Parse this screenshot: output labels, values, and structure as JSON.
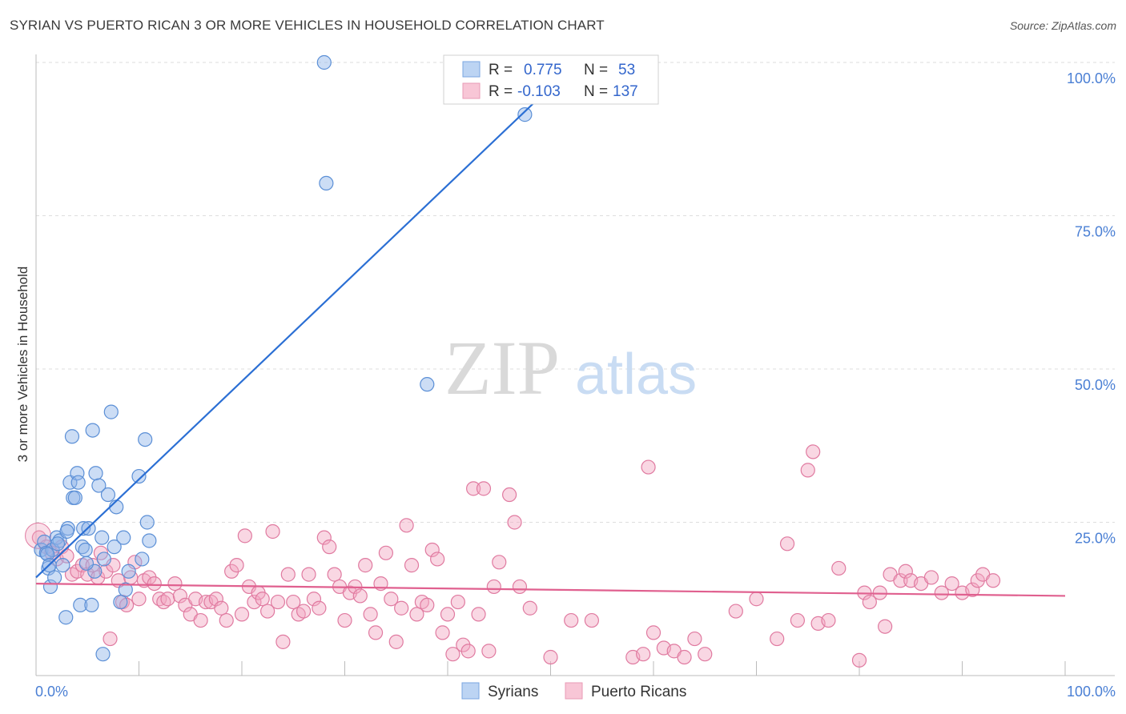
{
  "title": "SYRIAN VS PUERTO RICAN 3 OR MORE VEHICLES IN HOUSEHOLD CORRELATION CHART",
  "source": "Source: ZipAtlas.com",
  "watermark": {
    "zip": "ZIP",
    "atlas": "atlas"
  },
  "chart_data": {
    "type": "scatter",
    "xlabel": "",
    "ylabel": "3 or more Vehicles in Household",
    "xlim": [
      0,
      100
    ],
    "ylim": [
      0,
      100
    ],
    "x_tick_labels": [
      "0.0%",
      "100.0%"
    ],
    "y_ticks": [
      25,
      50,
      75,
      100
    ],
    "y_tick_labels": [
      "25.0%",
      "50.0%",
      "75.0%",
      "100.0%"
    ],
    "grid": true,
    "legend_top": [
      {
        "r_label": "R =",
        "r_value": "0.775",
        "n_label": "N =",
        "n_value": "53",
        "color": "#8db4e8"
      },
      {
        "r_label": "R =",
        "r_value": "-0.103",
        "n_label": "N =",
        "n_value": "137",
        "color": "#f2a7c0"
      }
    ],
    "series": [
      {
        "name": "Syrians",
        "color": "#8db4e8",
        "stroke": "#5b8fd6",
        "trend_color": "#2b6fd4",
        "trend": {
          "x0": 0,
          "y0": 16,
          "x1": 50,
          "y1": 96
        },
        "points": [
          [
            0.5,
            20.5
          ],
          [
            0.8,
            21.8
          ],
          [
            1,
            20
          ],
          [
            1.2,
            17.5
          ],
          [
            1.4,
            14.5
          ],
          [
            1.6,
            20.5
          ],
          [
            1.8,
            16
          ],
          [
            2,
            22.5
          ],
          [
            2.3,
            22
          ],
          [
            2.6,
            18
          ],
          [
            2.9,
            9.5
          ],
          [
            3.1,
            24
          ],
          [
            3.3,
            31.5
          ],
          [
            3.5,
            39
          ],
          [
            3.6,
            29
          ],
          [
            3.8,
            29
          ],
          [
            4,
            33
          ],
          [
            4.1,
            31.5
          ],
          [
            4.3,
            11.5
          ],
          [
            4.5,
            21
          ],
          [
            4.6,
            24
          ],
          [
            4.8,
            20.5
          ],
          [
            5.1,
            24
          ],
          [
            5.4,
            11.5
          ],
          [
            5.5,
            40
          ],
          [
            5.7,
            17
          ],
          [
            5.8,
            33
          ],
          [
            6.1,
            31
          ],
          [
            6.4,
            22.5
          ],
          [
            6.6,
            19
          ],
          [
            7,
            29.5
          ],
          [
            7.3,
            43
          ],
          [
            7.6,
            21
          ],
          [
            7.8,
            27.5
          ],
          [
            8.2,
            12
          ],
          [
            8.5,
            22.5
          ],
          [
            8.7,
            14
          ],
          [
            9,
            17
          ],
          [
            10,
            32.5
          ],
          [
            10.3,
            19
          ],
          [
            10.6,
            38.5
          ],
          [
            10.8,
            25
          ],
          [
            11,
            22
          ],
          [
            6.5,
            3.5
          ],
          [
            1.1,
            19.8
          ],
          [
            2.1,
            21.5
          ],
          [
            4.9,
            18.3
          ],
          [
            28,
            100
          ],
          [
            28.2,
            80.3
          ],
          [
            47.5,
            91.5
          ],
          [
            38,
            47.5
          ],
          [
            1.3,
            18
          ],
          [
            3,
            23.5
          ]
        ]
      },
      {
        "name": "Puerto Ricans",
        "color": "#f2a7c0",
        "stroke": "#e07aa0",
        "trend_color": "#e0608f",
        "trend": {
          "x0": 0,
          "y0": 15,
          "x1": 100,
          "y1": 13
        },
        "points": [
          [
            0.3,
            22.5
          ],
          [
            1,
            21
          ],
          [
            1.5,
            20
          ],
          [
            2,
            19
          ],
          [
            2.5,
            21
          ],
          [
            3,
            19.5
          ],
          [
            3.5,
            16.5
          ],
          [
            4,
            17
          ],
          [
            4.5,
            18
          ],
          [
            5,
            16.5
          ],
          [
            5.5,
            18
          ],
          [
            6,
            16
          ],
          [
            6.3,
            20
          ],
          [
            6.8,
            17
          ],
          [
            7.2,
            6
          ],
          [
            7.5,
            18
          ],
          [
            8,
            15.5
          ],
          [
            8.4,
            12
          ],
          [
            8.8,
            11.5
          ],
          [
            9.2,
            16
          ],
          [
            9.6,
            18.5
          ],
          [
            10,
            12.5
          ],
          [
            10.5,
            15.5
          ],
          [
            11,
            16
          ],
          [
            11.5,
            15
          ],
          [
            12,
            12.5
          ],
          [
            12.4,
            12
          ],
          [
            12.8,
            12.5
          ],
          [
            13.5,
            15
          ],
          [
            14,
            13
          ],
          [
            14.5,
            11.5
          ],
          [
            15,
            10
          ],
          [
            15.5,
            12.5
          ],
          [
            16,
            9
          ],
          [
            16.5,
            12
          ],
          [
            17,
            12
          ],
          [
            17.5,
            12.5
          ],
          [
            18,
            11
          ],
          [
            18.5,
            9
          ],
          [
            19,
            17
          ],
          [
            19.5,
            18
          ],
          [
            20,
            10
          ],
          [
            20.3,
            22.8
          ],
          [
            20.7,
            14.5
          ],
          [
            21.2,
            12
          ],
          [
            21.6,
            13.5
          ],
          [
            22,
            12.5
          ],
          [
            22.5,
            10.5
          ],
          [
            23,
            23.5
          ],
          [
            23.5,
            12
          ],
          [
            24,
            5.5
          ],
          [
            24.5,
            16.5
          ],
          [
            25,
            12
          ],
          [
            25.5,
            10
          ],
          [
            26,
            10.5
          ],
          [
            26.5,
            16.5
          ],
          [
            27,
            12.5
          ],
          [
            27.5,
            11
          ],
          [
            28,
            22.5
          ],
          [
            28.5,
            21
          ],
          [
            29,
            16.5
          ],
          [
            29.5,
            14.5
          ],
          [
            30,
            9
          ],
          [
            30.5,
            13.5
          ],
          [
            31,
            14.5
          ],
          [
            31.5,
            13
          ],
          [
            32,
            18
          ],
          [
            32.5,
            10
          ],
          [
            33,
            7
          ],
          [
            33.5,
            15
          ],
          [
            34,
            20
          ],
          [
            34.5,
            12.5
          ],
          [
            35,
            5.5
          ],
          [
            35.5,
            11
          ],
          [
            36,
            24.5
          ],
          [
            36.5,
            18
          ],
          [
            37,
            10
          ],
          [
            37.5,
            12
          ],
          [
            38,
            11.5
          ],
          [
            38.5,
            20.5
          ],
          [
            39,
            19
          ],
          [
            39.5,
            7
          ],
          [
            40,
            10
          ],
          [
            40.5,
            3.5
          ],
          [
            41,
            12
          ],
          [
            41.5,
            5
          ],
          [
            42,
            4
          ],
          [
            42.5,
            30.5
          ],
          [
            43,
            10
          ],
          [
            43.5,
            30.5
          ],
          [
            44,
            4
          ],
          [
            44.5,
            14.5
          ],
          [
            45,
            18.5
          ],
          [
            46,
            29.5
          ],
          [
            46.5,
            25
          ],
          [
            47,
            14.5
          ],
          [
            48,
            11
          ],
          [
            50,
            3
          ],
          [
            52,
            9
          ],
          [
            54,
            9
          ],
          [
            58,
            3
          ],
          [
            59,
            3.5
          ],
          [
            59.5,
            34
          ],
          [
            60,
            7
          ],
          [
            61,
            4.5
          ],
          [
            62,
            4
          ],
          [
            63,
            3
          ],
          [
            64,
            6
          ],
          [
            65,
            3.5
          ],
          [
            68,
            10.5
          ],
          [
            70,
            12.5
          ],
          [
            72,
            6
          ],
          [
            73,
            21.5
          ],
          [
            74,
            9
          ],
          [
            75,
            33.5
          ],
          [
            75.5,
            36.5
          ],
          [
            76,
            8.5
          ],
          [
            77,
            9
          ],
          [
            78,
            17.5
          ],
          [
            80,
            2.5
          ],
          [
            80.5,
            13.5
          ],
          [
            81,
            12
          ],
          [
            82,
            13.5
          ],
          [
            82.5,
            8
          ],
          [
            83,
            16.5
          ],
          [
            84,
            15.5
          ],
          [
            84.5,
            17
          ],
          [
            85,
            15.5
          ],
          [
            86,
            15
          ],
          [
            87,
            16
          ],
          [
            88,
            13.5
          ],
          [
            89,
            15
          ],
          [
            90,
            13.5
          ],
          [
            91,
            14
          ],
          [
            91.5,
            15.5
          ],
          [
            92,
            16.5
          ],
          [
            93,
            15.5
          ]
        ]
      }
    ]
  },
  "bottom_legend": {
    "syrians": "Syrians",
    "puerto_ricans": "Puerto Ricans"
  }
}
